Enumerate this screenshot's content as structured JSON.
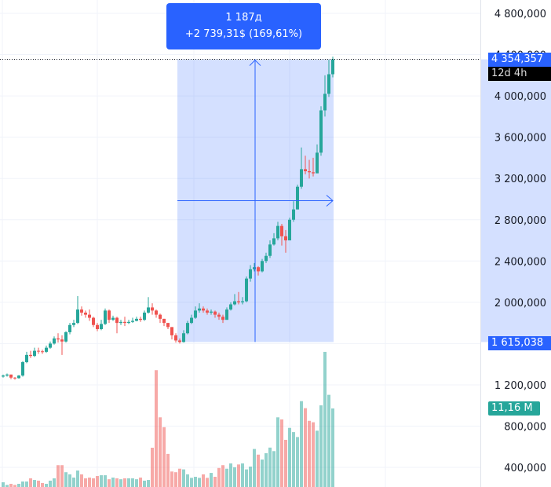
{
  "chart_data": {
    "type": "candlestick",
    "price_unit_thousands": true,
    "open_first": 1280,
    "close": [
      1290,
      1300,
      1270,
      1265,
      1290,
      1420,
      1490,
      1480,
      1530,
      1525,
      1520,
      1560,
      1600,
      1650,
      1640,
      1620,
      1710,
      1780,
      1800,
      1930,
      1900,
      1880,
      1850,
      1780,
      1740,
      1790,
      1920,
      1830,
      1850,
      1800,
      1810,
      1800,
      1810,
      1820,
      1840,
      1830,
      1900,
      1950,
      1920,
      1880,
      1840,
      1800,
      1760,
      1680,
      1630,
      1615,
      1700,
      1800,
      1850,
      1920,
      1940,
      1920,
      1900,
      1910,
      1880,
      1860,
      1830,
      1930,
      1980,
      2010,
      2000,
      2010,
      2230,
      2320,
      2340,
      2300,
      2400,
      2450,
      2560,
      2620,
      2740,
      2640,
      2600,
      2800,
      2900,
      3120,
      3290,
      3270,
      3260,
      3250,
      3450,
      3860,
      4020,
      4210,
      4354.357
    ],
    "high": [
      1300,
      1310,
      1300,
      1275,
      1295,
      1430,
      1520,
      1530,
      1560,
      1560,
      1540,
      1580,
      1620,
      1670,
      1700,
      1680,
      1720,
      1800,
      1830,
      2060,
      1960,
      1920,
      1930,
      1860,
      1800,
      1830,
      1940,
      1930,
      1870,
      1860,
      1830,
      1860,
      1830,
      1850,
      1860,
      1860,
      1920,
      2050,
      1990,
      1930,
      1890,
      1840,
      1800,
      1760,
      1700,
      1650,
      1730,
      1820,
      1880,
      1960,
      1990,
      1960,
      1940,
      1930,
      1920,
      1900,
      1880,
      1950,
      2000,
      2080,
      2100,
      2050,
      2250,
      2360,
      2380,
      2350,
      2420,
      2480,
      2600,
      2670,
      2780,
      2760,
      2700,
      2820,
      2980,
      3140,
      3500,
      3420,
      3380,
      3400,
      3530,
      3900,
      4200,
      4350,
      4380
    ],
    "low": [
      1270,
      1280,
      1255,
      1250,
      1260,
      1280,
      1410,
      1460,
      1470,
      1500,
      1500,
      1510,
      1550,
      1590,
      1610,
      1490,
      1610,
      1690,
      1760,
      1790,
      1870,
      1850,
      1820,
      1760,
      1720,
      1730,
      1780,
      1800,
      1820,
      1700,
      1780,
      1770,
      1790,
      1800,
      1815,
      1810,
      1820,
      1890,
      1880,
      1850,
      1800,
      1770,
      1740,
      1640,
      1610,
      1600,
      1610,
      1690,
      1790,
      1840,
      1900,
      1900,
      1880,
      1880,
      1850,
      1830,
      1800,
      1830,
      1920,
      1970,
      1980,
      1980,
      2000,
      2200,
      2300,
      2260,
      2290,
      2380,
      2430,
      2550,
      2600,
      2550,
      2480,
      2600,
      2780,
      2900,
      3100,
      3240,
      3200,
      3220,
      3250,
      3420,
      3800,
      3990,
      4180
    ],
    "volume_millions": [
      0.67,
      0.3,
      0.45,
      0.3,
      0.45,
      0.78,
      0.78,
      1.23,
      1.0,
      0.9,
      0.56,
      0.45,
      0.9,
      1.23,
      3.1,
      3.1,
      2.1,
      1.8,
      1.34,
      2.34,
      1.8,
      1.23,
      1.34,
      1.23,
      1.56,
      1.67,
      1.67,
      1.1,
      1.34,
      1.23,
      1.1,
      1.23,
      1.23,
      1.23,
      1.1,
      1.34,
      0.9,
      1.0,
      5.58,
      16.6,
      9.9,
      8.5,
      4.7,
      2.2,
      2.1,
      2.6,
      2.5,
      1.8,
      1.3,
      1.45,
      1.3,
      1.8,
      1.3,
      2.0,
      1.45,
      2.7,
      3.1,
      2.6,
      3.35,
      2.8,
      3.2,
      3.35,
      2.5,
      2.9,
      5.4,
      4.6,
      3.9,
      4.8,
      5.6,
      5.1,
      9.9,
      9.6,
      6.7,
      8.4,
      7.8,
      7.1,
      12.2,
      11.2,
      9.4,
      9.2,
      8.0,
      11.6,
      19.2,
      13.1,
      11.16
    ],
    "y_ticks": [
      "4 800,000",
      "4 400,000",
      "4 000,000",
      "3 600,000",
      "3 200,000",
      "2 800,000",
      "2 400,000",
      "2 000,000",
      "1 600,000",
      "1 200,000",
      "800,000",
      "400,000"
    ],
    "y_tick_values": [
      4800000,
      4400000,
      4000000,
      3600000,
      3200000,
      2800000,
      2400000,
      2000000,
      1600000,
      1200000,
      800000,
      400000
    ],
    "ylim": [
      350000,
      4950000
    ],
    "grid": true,
    "colors": {
      "up": "#26a69a",
      "down": "#ef5350",
      "measure": "#2962ff"
    },
    "measure": {
      "from_price": 1615038,
      "to_price": 4354357,
      "line1": "1 187д",
      "line2": "+2 739,31$ (169,61%)"
    }
  },
  "labels": {
    "current_price": "4 354,357",
    "countdown": "12d 4h",
    "measure_low": "1 615,038",
    "volume": "11,16 M"
  }
}
